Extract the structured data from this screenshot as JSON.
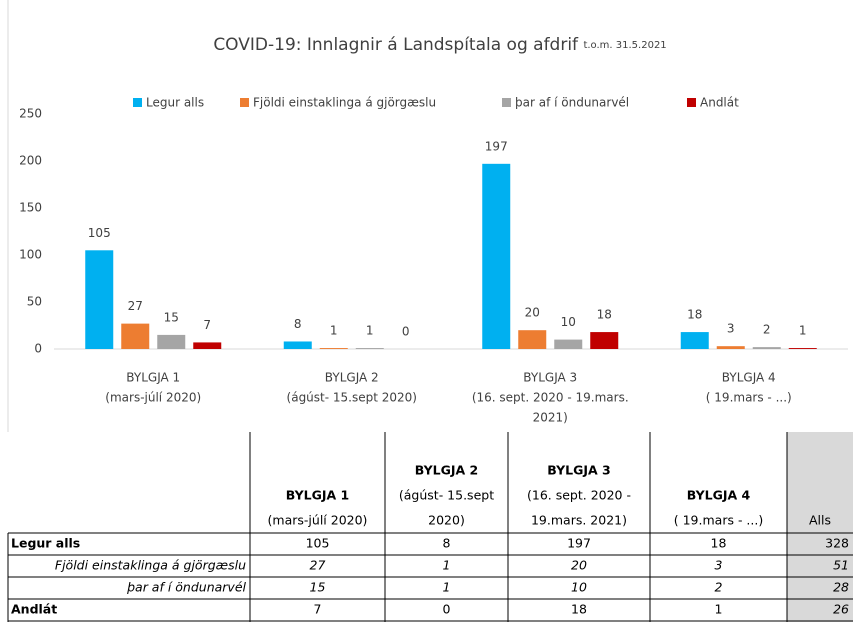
{
  "chart_data": {
    "type": "bar",
    "title": "COVID-19: Innlagnir á Landspítala og afdrif",
    "subtitle": "t.o.m. 31.5.2021",
    "categories": [
      [
        "BYLGJA 1",
        "(mars-júlí 2020)"
      ],
      [
        "BYLGJA 2",
        "(ágúst- 15.sept 2020)"
      ],
      [
        "BYLGJA 3",
        "(16. sept. 2020 - 19.mars.",
        "2021)"
      ],
      [
        "BYLGJA 4",
        "( 19.mars - ...)"
      ]
    ],
    "series": [
      {
        "name": "Legur alls",
        "color": "#00b0f0",
        "values": [
          105,
          8,
          197,
          18
        ]
      },
      {
        "name": "Fjöldi einstaklinga á gjörgæslu",
        "color": "#ed7d31",
        "values": [
          27,
          1,
          20,
          3
        ]
      },
      {
        "name": "þar af í öndunarvél",
        "color": "#a5a5a5",
        "values": [
          15,
          1,
          10,
          2
        ]
      },
      {
        "name": "Andlát",
        "color": "#c00000",
        "values": [
          7,
          0,
          18,
          1
        ]
      }
    ],
    "ylim": [
      0,
      250
    ],
    "yticks": [
      0,
      50,
      100,
      150,
      200,
      250
    ],
    "grid": false,
    "legend": "top"
  },
  "table": {
    "header": [
      [
        "BYLGJA 1",
        "(mars-júlí 2020)"
      ],
      [
        "BYLGJA 2",
        "(ágúst- 15.sept",
        "2020)"
      ],
      [
        "BYLGJA 3",
        "(16. sept. 2020 -",
        "19.mars. 2021)"
      ],
      [
        "BYLGJA 4",
        "( 19.mars - ...)"
      ],
      [
        "Alls"
      ]
    ],
    "rows": [
      [
        "Legur alls",
        105,
        8,
        197,
        18,
        328
      ],
      [
        "Fjöldi einstaklinga á gjörgæslu",
        27,
        1,
        20,
        3,
        51
      ],
      [
        "þar af í öndunarvél",
        15,
        1,
        10,
        2,
        28
      ],
      [
        "Andlát",
        7,
        0,
        18,
        1,
        26
      ]
    ]
  }
}
